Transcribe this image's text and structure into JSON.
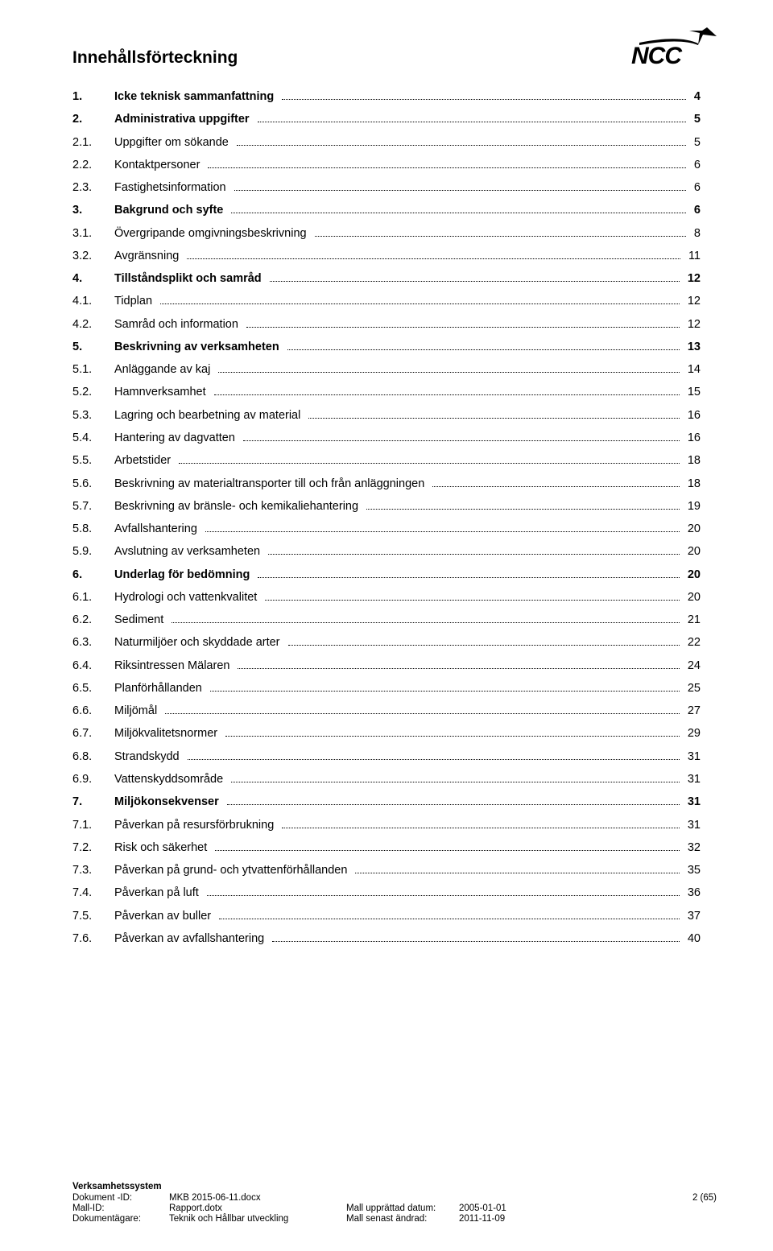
{
  "logo": {
    "text": "NCC",
    "color": "#000000"
  },
  "toc": {
    "title": "Innehållsförteckning",
    "entries": [
      {
        "num": "1.",
        "label": "Icke teknisk sammanfattning",
        "page": "4",
        "bold": true
      },
      {
        "num": "2.",
        "label": "Administrativa uppgifter",
        "page": "5",
        "bold": true
      },
      {
        "num": "2.1.",
        "label": "Uppgifter om sökande",
        "page": "5",
        "bold": false
      },
      {
        "num": "2.2.",
        "label": "Kontaktpersoner",
        "page": "6",
        "bold": false
      },
      {
        "num": "2.3.",
        "label": "Fastighetsinformation",
        "page": "6",
        "bold": false
      },
      {
        "num": "3.",
        "label": "Bakgrund och syfte",
        "page": "6",
        "bold": true
      },
      {
        "num": "3.1.",
        "label": "Övergripande omgivningsbeskrivning",
        "page": "8",
        "bold": false
      },
      {
        "num": "3.2.",
        "label": "Avgränsning",
        "page": "11",
        "bold": false
      },
      {
        "num": "4.",
        "label": "Tillståndsplikt och samråd",
        "page": "12",
        "bold": true
      },
      {
        "num": "4.1.",
        "label": "Tidplan",
        "page": "12",
        "bold": false
      },
      {
        "num": "4.2.",
        "label": "Samråd och information",
        "page": "12",
        "bold": false
      },
      {
        "num": "5.",
        "label": "Beskrivning av verksamheten",
        "page": "13",
        "bold": true
      },
      {
        "num": "5.1.",
        "label": "Anläggande av kaj",
        "page": "14",
        "bold": false
      },
      {
        "num": "5.2.",
        "label": "Hamnverksamhet",
        "page": "15",
        "bold": false
      },
      {
        "num": "5.3.",
        "label": "Lagring och bearbetning av material",
        "page": "16",
        "bold": false
      },
      {
        "num": "5.4.",
        "label": "Hantering av dagvatten",
        "page": "16",
        "bold": false
      },
      {
        "num": "5.5.",
        "label": "Arbetstider",
        "page": "18",
        "bold": false
      },
      {
        "num": "5.6.",
        "label": "Beskrivning av materialtransporter till och från anläggningen",
        "page": "18",
        "bold": false
      },
      {
        "num": "5.7.",
        "label": "Beskrivning av bränsle- och kemikaliehantering",
        "page": "19",
        "bold": false
      },
      {
        "num": "5.8.",
        "label": "Avfallshantering",
        "page": "20",
        "bold": false
      },
      {
        "num": "5.9.",
        "label": "Avslutning av verksamheten",
        "page": "20",
        "bold": false
      },
      {
        "num": "6.",
        "label": "Underlag för bedömning",
        "page": "20",
        "bold": true
      },
      {
        "num": "6.1.",
        "label": "Hydrologi och vattenkvalitet",
        "page": "20",
        "bold": false
      },
      {
        "num": "6.2.",
        "label": "Sediment",
        "page": "21",
        "bold": false
      },
      {
        "num": "6.3.",
        "label": "Naturmiljöer och skyddade arter",
        "page": "22",
        "bold": false
      },
      {
        "num": "6.4.",
        "label": "Riksintressen Mälaren",
        "page": "24",
        "bold": false
      },
      {
        "num": "6.5.",
        "label": "Planförhållanden",
        "page": "25",
        "bold": false
      },
      {
        "num": "6.6.",
        "label": "Miljömål",
        "page": "27",
        "bold": false
      },
      {
        "num": "6.7.",
        "label": "Miljökvalitetsnormer",
        "page": "29",
        "bold": false
      },
      {
        "num": "6.8.",
        "label": "Strandskydd",
        "page": "31",
        "bold": false
      },
      {
        "num": "6.9.",
        "label": "Vattenskyddsområde",
        "page": "31",
        "bold": false
      },
      {
        "num": "7.",
        "label": "Miljökonsekvenser",
        "page": "31",
        "bold": true
      },
      {
        "num": "7.1.",
        "label": "Påverkan på resursförbrukning",
        "page": "31",
        "bold": false
      },
      {
        "num": "7.2.",
        "label": "Risk och säkerhet",
        "page": "32",
        "bold": false
      },
      {
        "num": "7.3.",
        "label": "Påverkan på grund- och ytvattenförhållanden",
        "page": "35",
        "bold": false
      },
      {
        "num": "7.4.",
        "label": "Påverkan på luft",
        "page": "36",
        "bold": false
      },
      {
        "num": "7.5.",
        "label": "Påverkan av buller",
        "page": "37",
        "bold": false
      },
      {
        "num": "7.6.",
        "label": "Påverkan av avfallshantering",
        "page": "40",
        "bold": false
      }
    ]
  },
  "footer": {
    "heading": "Verksamhetssystem",
    "rows": [
      {
        "label": "Dokument -ID:",
        "value": "MKB 2015-06-11.docx",
        "rlabel": "",
        "rvalue": "",
        "far_right": "2 (65)"
      },
      {
        "label": "Mall-ID:",
        "value": "Rapport.dotx",
        "rlabel": "Mall upprättad datum:",
        "rvalue": "2005-01-01",
        "far_right": ""
      },
      {
        "label": "Dokumentägare:",
        "value": "Teknik och Hållbar utveckling",
        "rlabel": "Mall senast ändrad:",
        "rvalue": "2011-11-09",
        "far_right": ""
      }
    ]
  }
}
